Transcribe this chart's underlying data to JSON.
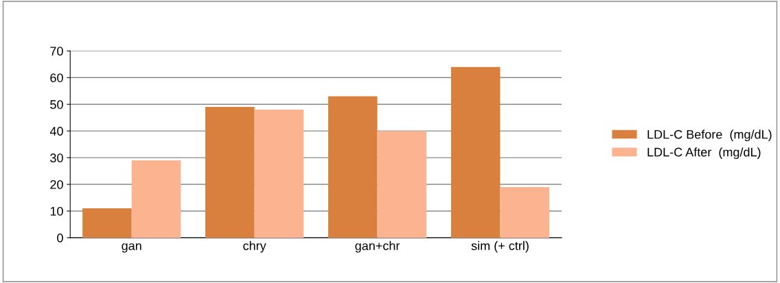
{
  "chart_data": {
    "type": "bar",
    "categories": [
      "gan",
      "chry",
      "gan+chr",
      "sim (+ ctrl)"
    ],
    "series": [
      {
        "name": "LDL-C Before  (mg/dL)",
        "color": "#d9803e",
        "values": [
          11,
          49,
          53,
          64
        ]
      },
      {
        "name": "LDL-C After  (mg/dL)",
        "color": "#fbb48f",
        "values": [
          29,
          48,
          40,
          19
        ]
      }
    ],
    "ylim": [
      0,
      70
    ],
    "yticks": [
      0,
      10,
      20,
      30,
      40,
      50,
      60,
      70
    ],
    "grid": "y",
    "legend": "right"
  }
}
